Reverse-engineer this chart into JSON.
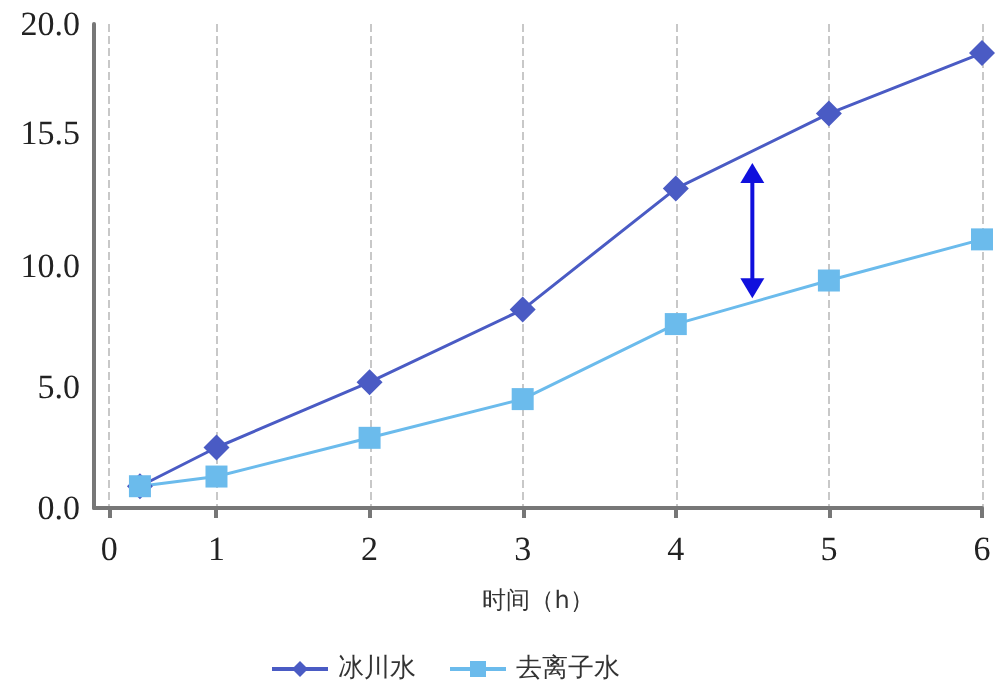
{
  "chart_data": {
    "type": "line",
    "xlabel": "时间（h）",
    "x": [
      0.5,
      1,
      2,
      3,
      4,
      5,
      6
    ],
    "series": [
      {
        "name": "冰川水",
        "color": "#4a5bc4",
        "marker": "diamond",
        "values": [
          0.9,
          2.5,
          5.2,
          8.2,
          13.2,
          16.3,
          18.8
        ]
      },
      {
        "name": "去离子水",
        "color": "#6bbbec",
        "marker": "square",
        "values": [
          0.9,
          1.3,
          2.9,
          4.5,
          7.6,
          9.4,
          11.1
        ]
      }
    ],
    "xlim": [
      0.2,
      6
    ],
    "xticks": [
      {
        "value": 0.3,
        "label": "0"
      },
      1,
      2,
      3,
      4,
      5,
      6
    ],
    "ylim": [
      0,
      20
    ],
    "yticks": [
      {
        "value": 0,
        "label": "0.0"
      },
      {
        "value": 5,
        "label": "5.0"
      },
      {
        "value": 10,
        "label": "10.0"
      },
      {
        "value": 15.5,
        "label": "15.5"
      },
      {
        "value": 20,
        "label": "20.0"
      }
    ],
    "grid": "x",
    "legend": "bottom",
    "line_style": "solid"
  }
}
